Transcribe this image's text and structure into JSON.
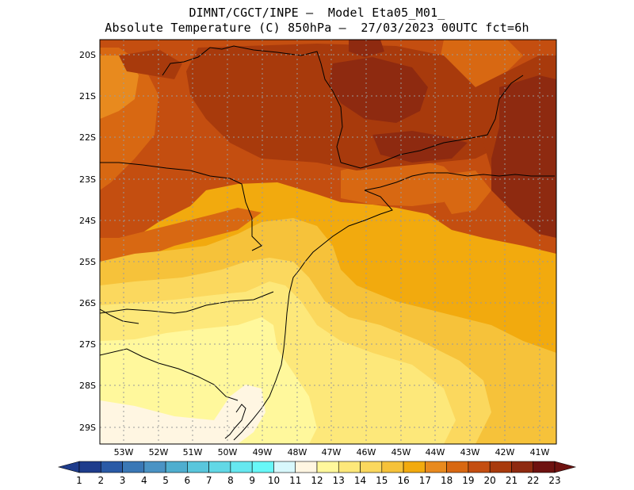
{
  "header": {
    "line1": "DIMNT/CGCT/INPE —  Model Eta05_M01_",
    "line2": "Absolute Temperature (C) 850hPa —  27/03/2023 00UTC fct=6h"
  },
  "map": {
    "lat_labels": [
      "20S",
      "21S",
      "22S",
      "23S",
      "24S",
      "25S",
      "26S",
      "27S",
      "28S",
      "29S"
    ],
    "lon_labels": [
      "53W",
      "52W",
      "51W",
      "50W",
      "49W",
      "48W",
      "47W",
      "46W",
      "45W",
      "44W",
      "43W",
      "42W",
      "41W"
    ],
    "lat_range": [
      -29.6,
      -19.7
    ],
    "lon_range": [
      -53.6,
      -40.5
    ],
    "grid": true
  },
  "colorbar": {
    "labels": [
      "1",
      "2",
      "3",
      "4",
      "5",
      "6",
      "7",
      "8",
      "9",
      "10",
      "11",
      "12",
      "13",
      "14",
      "15",
      "16",
      "17",
      "18",
      "19",
      "20",
      "21",
      "22",
      "23"
    ],
    "colors": [
      "#1e3c8c",
      "#2a5aa6",
      "#3a78b6",
      "#4a93c4",
      "#4faecf",
      "#59c6dc",
      "#62d8e6",
      "#66e8f0",
      "#68f8f8",
      "#d8f8fc",
      "#fff6e2",
      "#fff89c",
      "#fde87a",
      "#fbd85e",
      "#f6c23a",
      "#f2aa0e",
      "#e88a1e",
      "#d86812",
      "#c44e10",
      "#a83a0c",
      "#8e2a10",
      "#6e1210"
    ]
  },
  "temperature_field": {
    "legend_colors": {
      "c12": "#fff6e2",
      "c13": "#fff89c",
      "c14": "#fde87a",
      "c15": "#fbd85e",
      "c16": "#f6c23a",
      "c17": "#f2aa0e",
      "c18": "#e88a1e",
      "c19": "#d86812",
      "c20": "#c44e10",
      "c21": "#a83a0c",
      "c22": "#8e2a10"
    }
  }
}
